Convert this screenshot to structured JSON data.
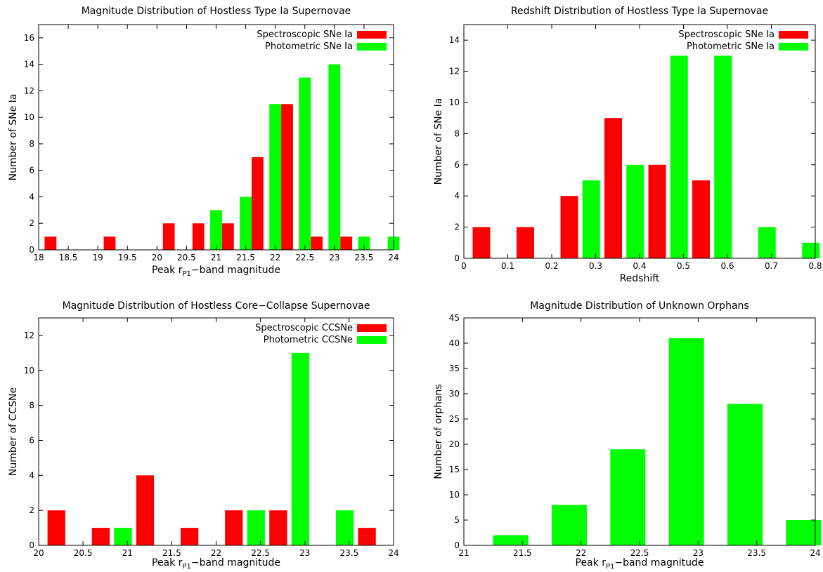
{
  "chart_data": [
    {
      "type": "bar",
      "title": "Magnitude Distribution of Hostless Type Ia Supernovae",
      "xlabel": "Peak r",
      "xlabel_sub": "P1",
      "xlabel_suffix": "−band magnitude",
      "ylabel": "Number of SNe Ia",
      "xlim": [
        18,
        24
      ],
      "ylim": [
        0,
        17
      ],
      "xticks": [
        18,
        18.5,
        19,
        19.5,
        20,
        20.5,
        21,
        21.5,
        22,
        22.5,
        23,
        23.5,
        24
      ],
      "yticks": [
        0,
        2,
        4,
        6,
        8,
        10,
        12,
        14,
        16
      ],
      "bar_width": 0.2,
      "legend_position": "top-right",
      "series": [
        {
          "name": "Spectroscopic SNe Ia",
          "color": "#ff0000",
          "x": [
            18.1,
            19.1,
            20.1,
            20.6,
            21.1,
            21.6,
            22.1,
            22.6,
            23.1
          ],
          "values": [
            1,
            1,
            2,
            2,
            2,
            7,
            11,
            1,
            1
          ]
        },
        {
          "name": "Photometric SNe Ia",
          "color": "#00ff00",
          "x": [
            20.9,
            21.4,
            21.9,
            22.4,
            22.9,
            23.4,
            23.9
          ],
          "values": [
            3,
            4,
            11,
            13,
            14,
            1,
            1
          ]
        }
      ]
    },
    {
      "type": "bar",
      "title": "Redshift Distribution of Hostless Type Ia Supernovae",
      "xlabel": "Redshift",
      "xlabel_sub": "",
      "xlabel_suffix": "",
      "ylabel": "Number of SNe Ia",
      "xlim": [
        0,
        0.8
      ],
      "ylim": [
        0,
        15
      ],
      "xticks": [
        0,
        0.1,
        0.2,
        0.3,
        0.4,
        0.5,
        0.6,
        0.7,
        0.8
      ],
      "yticks": [
        0,
        2,
        4,
        6,
        8,
        10,
        12,
        14
      ],
      "bar_width": 0.04,
      "legend_position": "top-right",
      "series": [
        {
          "name": "Spectroscopic SNe Ia",
          "color": "#ff0000",
          "x": [
            0.02,
            0.12,
            0.22,
            0.32,
            0.42,
            0.52
          ],
          "values": [
            2,
            2,
            4,
            9,
            6,
            5
          ]
        },
        {
          "name": "Photometric SNe Ia",
          "color": "#00ff00",
          "x": [
            0.27,
            0.37,
            0.47,
            0.57,
            0.67,
            0.77
          ],
          "values": [
            5,
            6,
            13,
            13,
            2,
            1
          ]
        }
      ]
    },
    {
      "type": "bar",
      "title": "Magnitude Distribution of Hostless Core−Collapse Supernovae",
      "xlabel": "Peak r",
      "xlabel_sub": "P1",
      "xlabel_suffix": "−band magnitude",
      "ylabel": "Number of CCSNe",
      "xlim": [
        20,
        24
      ],
      "ylim": [
        0,
        13
      ],
      "xticks": [
        20,
        20.5,
        21,
        21.5,
        22,
        22.5,
        23,
        23.5,
        24
      ],
      "yticks": [
        0,
        2,
        4,
        6,
        8,
        10,
        12
      ],
      "bar_width": 0.2,
      "legend_position": "top-right",
      "series": [
        {
          "name": "Spectroscopic CCSNe",
          "color": "#ff0000",
          "x": [
            20.1,
            20.6,
            21.1,
            21.6,
            22.1,
            22.6,
            23.6
          ],
          "values": [
            2,
            1,
            4,
            1,
            2,
            2,
            1
          ]
        },
        {
          "name": "Photometric CCSNe",
          "color": "#00ff00",
          "x": [
            20.85,
            22.35,
            22.85,
            23.35
          ],
          "values": [
            1,
            2,
            11,
            2
          ]
        }
      ]
    },
    {
      "type": "bar",
      "title": "Magnitude Distribution of Unknown Orphans",
      "xlabel": "Peak r",
      "xlabel_sub": "P1",
      "xlabel_suffix": "−band magnitude",
      "ylabel": "Number of orphans",
      "xlim": [
        21,
        24
      ],
      "ylim": [
        0,
        45
      ],
      "xticks": [
        21,
        21.5,
        22,
        22.5,
        23,
        23.5,
        24
      ],
      "yticks": [
        0,
        5,
        10,
        15,
        20,
        25,
        30,
        35,
        40,
        45
      ],
      "bar_width": 0.3,
      "legend_position": "none",
      "series": [
        {
          "name": "",
          "color": "#00ff00",
          "x": [
            21.25,
            21.75,
            22.25,
            22.75,
            23.25,
            23.75
          ],
          "values": [
            2,
            8,
            19,
            41,
            28,
            5
          ]
        }
      ]
    }
  ]
}
